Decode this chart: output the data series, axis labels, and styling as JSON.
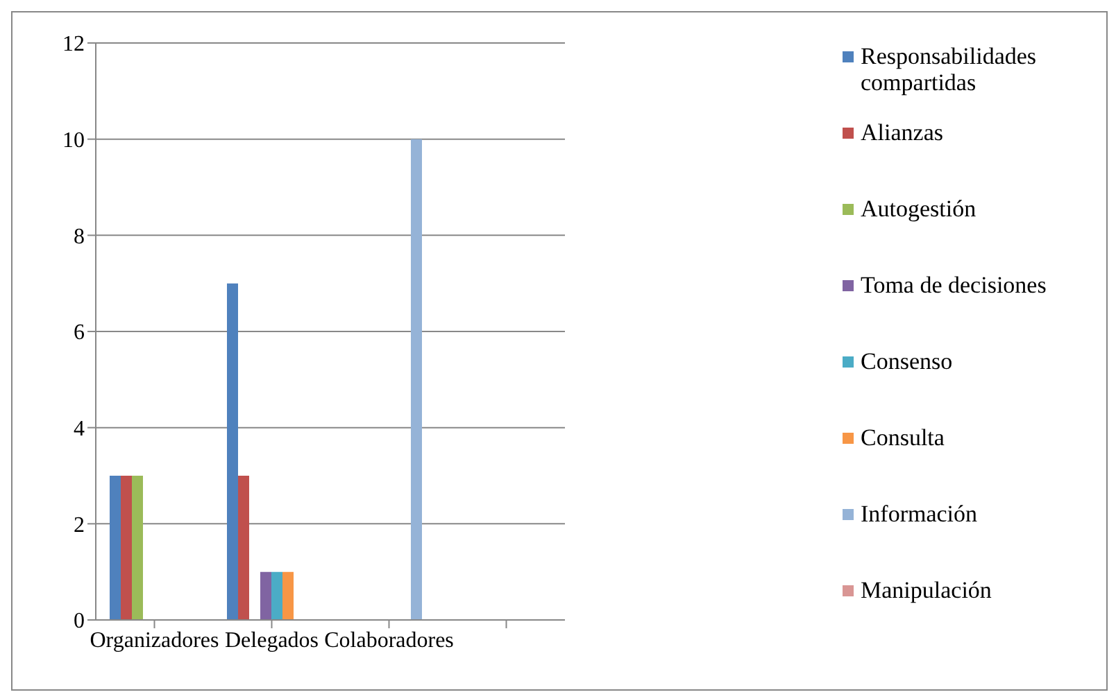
{
  "chart_data": {
    "type": "bar",
    "categories": [
      "Organizadores",
      "Delegados",
      "Colaboradores",
      null
    ],
    "series": [
      {
        "name": "Responsabilidades compartidas",
        "color": "#4f81bd",
        "values": [
          3,
          7,
          0,
          0
        ]
      },
      {
        "name": "Alianzas",
        "color": "#c0504d",
        "values": [
          3,
          3,
          0,
          0
        ]
      },
      {
        "name": "Autogestión",
        "color": "#9bbb59",
        "values": [
          3,
          0,
          0,
          0
        ]
      },
      {
        "name": "Toma de decisiones",
        "color": "#8064a2",
        "values": [
          0,
          1,
          0,
          0
        ]
      },
      {
        "name": "Consenso",
        "color": "#4bacc6",
        "values": [
          0,
          1,
          0,
          0
        ]
      },
      {
        "name": "Consulta",
        "color": "#f79646",
        "values": [
          0,
          1,
          0,
          0
        ]
      },
      {
        "name": "Información",
        "color": "#95b3d7",
        "values": [
          0,
          0,
          10,
          0
        ]
      },
      {
        "name": "Manipulación",
        "color": "#d99694",
        "values": [
          0,
          0,
          0,
          0
        ]
      }
    ],
    "ylim": [
      0,
      12
    ],
    "yticks": [
      0,
      2,
      4,
      6,
      8,
      10,
      12
    ],
    "grid": "y",
    "legend": "right"
  }
}
